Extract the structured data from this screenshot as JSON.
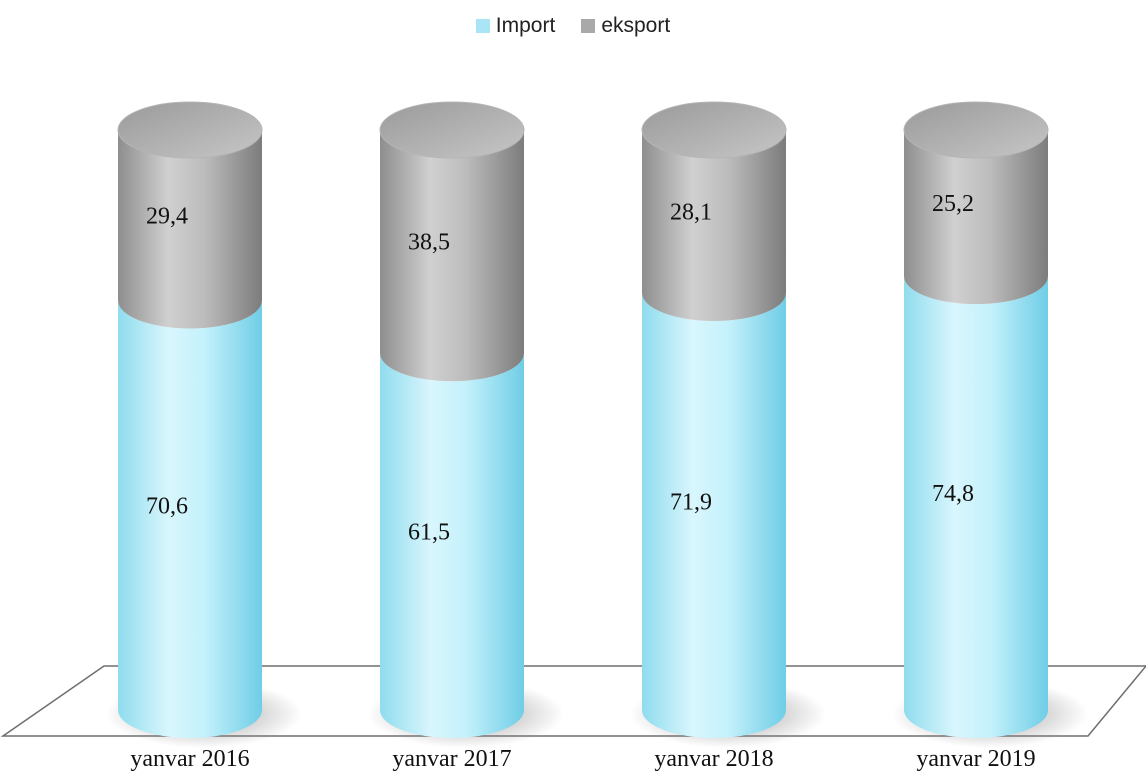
{
  "chart_data": {
    "type": "bar",
    "stacked": true,
    "style": "3d-cylinder",
    "categories": [
      "yanvar 2016",
      "yanvar 2017",
      "yanvar 2018",
      "yanvar 2019"
    ],
    "series": [
      {
        "name": "Import",
        "values": [
          70.6,
          61.5,
          71.9,
          74.8
        ],
        "labels": [
          "70,6",
          "61,5",
          "71,9",
          "74,8"
        ],
        "color": "#a8e6f5"
      },
      {
        "name": "eksport",
        "values": [
          29.4,
          38.5,
          28.1,
          25.2
        ],
        "labels": [
          "29,4",
          "38,5",
          "28,1",
          "25,2"
        ],
        "color": "#a9a9a9"
      }
    ],
    "ylim": [
      0,
      100
    ],
    "legend_position": "top",
    "grid": false
  }
}
